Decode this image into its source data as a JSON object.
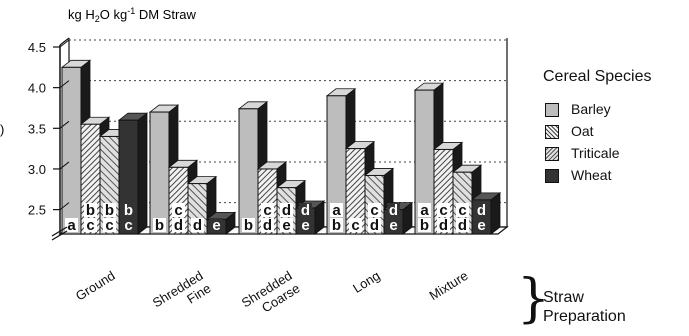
{
  "chart_data": {
    "type": "bar",
    "title": "",
    "ylabel_parts": {
      "base": "kg H",
      "sub": "2",
      "mid": "O kg",
      "sup": "-1",
      "tail": " DM Straw"
    },
    "xlabel_parts": [
      "Straw",
      "Preparation"
    ],
    "ylim": [
      2.2,
      4.5
    ],
    "yticks": [
      "2.5",
      "3.0",
      "3.5",
      "4.0",
      "4.5"
    ],
    "grid": true,
    "legend_position": "right",
    "legend_title": "Cereal Species",
    "categories": [
      [
        "Ground"
      ],
      [
        "Shredded",
        "Fine"
      ],
      [
        "Shredded",
        "Coarse"
      ],
      [
        "Long"
      ],
      [
        "Mixture"
      ]
    ],
    "series": [
      {
        "name": "Barley",
        "values": [
          4.25,
          3.7,
          3.74,
          3.9,
          3.97
        ],
        "letters": [
          [
            "a"
          ],
          [
            "b"
          ],
          [
            "b"
          ],
          [
            "a",
            "b"
          ],
          [
            "a",
            "b"
          ]
        ]
      },
      {
        "name": "Oat",
        "values": [
          3.55,
          3.02,
          3.0,
          3.25,
          3.24
        ],
        "letters": [
          [
            "b",
            "c"
          ],
          [
            "c",
            "d"
          ],
          [
            "c",
            "d"
          ],
          [
            "c"
          ],
          [
            "c",
            "d"
          ]
        ]
      },
      {
        "name": "Triticale",
        "values": [
          3.4,
          2.82,
          2.77,
          2.92,
          2.96
        ],
        "letters": [
          [
            "b",
            "c"
          ],
          [
            "d"
          ],
          [
            "d",
            "e"
          ],
          [
            "c",
            "d"
          ],
          [
            "c",
            "d"
          ]
        ]
      },
      {
        "name": "Wheat",
        "values": [
          3.6,
          2.38,
          2.52,
          2.5,
          2.62
        ],
        "letters": [
          [
            "b",
            "c"
          ],
          [
            "e"
          ],
          [
            "d",
            "e"
          ],
          [
            "d",
            "e"
          ],
          [
            "d",
            "e"
          ]
        ]
      }
    ],
    "colors": {
      "Barley": "#bdbdbd",
      "Oat": "#8a8a8a",
      "Triticale": "#9c9c9c",
      "Wheat": "#333333"
    },
    "annotations": {
      "cut_label": ")"
    }
  }
}
